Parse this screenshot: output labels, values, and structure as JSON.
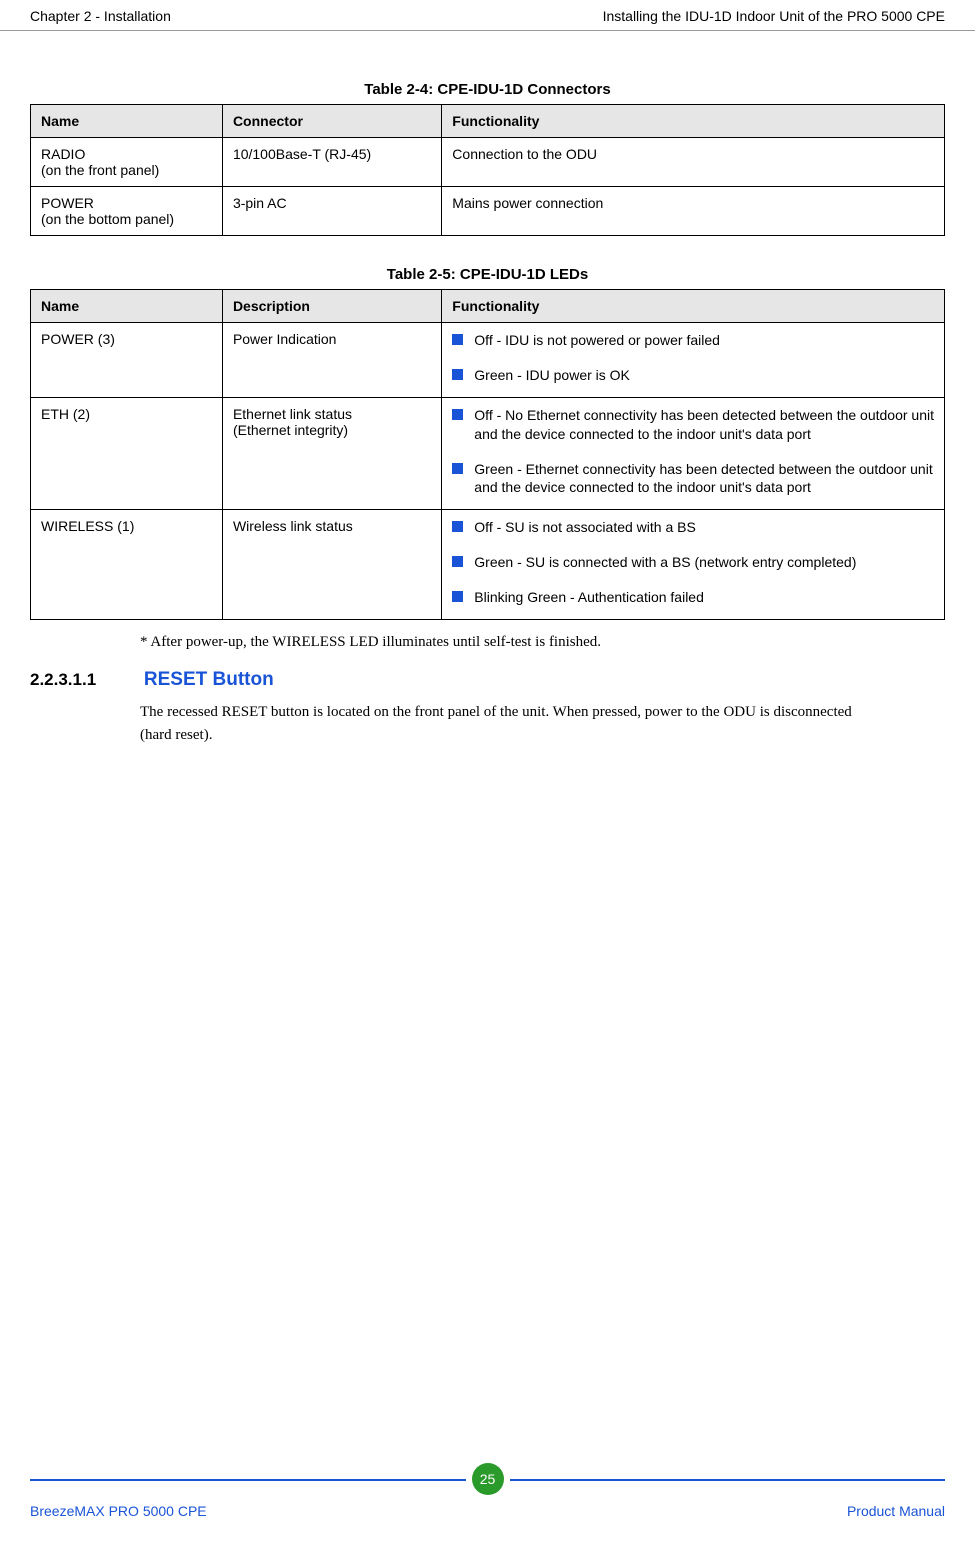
{
  "header": {
    "left": "Chapter 2 - Installation",
    "right": "Installing the IDU-1D Indoor Unit of the PRO 5000 CPE"
  },
  "table1": {
    "caption": "Table 2-4: CPE-IDU-1D Connectors",
    "columns": [
      "Name",
      "Connector",
      "Functionality"
    ],
    "rows": [
      {
        "name_l1": "RADIO",
        "name_l2": "(on the front panel)",
        "connector": "10/100Base-T (RJ-45)",
        "func": "Connection to the ODU"
      },
      {
        "name_l1": "POWER",
        "name_l2": "(on the bottom panel)",
        "connector": "3-pin AC",
        "func": "Mains power connection"
      }
    ]
  },
  "table2": {
    "caption": "Table 2-5: CPE-IDU-1D LEDs",
    "columns": [
      "Name",
      "Description",
      "Functionality"
    ],
    "rows": [
      {
        "name": "POWER (3)",
        "desc": "Power Indication",
        "items": [
          "Off - IDU is not powered or power failed",
          "Green - IDU power is OK"
        ]
      },
      {
        "name": "ETH (2)",
        "desc_l1": "Ethernet link status",
        "desc_l2": "(Ethernet integrity)",
        "items": [
          "Off - No Ethernet connectivity has been detected between the outdoor unit and the device connected to the indoor unit's data port",
          "Green - Ethernet connectivity has been detected between the outdoor unit and the device connected to the indoor unit's data port"
        ]
      },
      {
        "name": "WIRELESS (1)",
        "desc": "Wireless link status",
        "items": [
          "Off - SU is not associated with a BS",
          "Green - SU is connected with a BS (network entry completed)",
          "Blinking Green - Authentication failed"
        ]
      }
    ]
  },
  "note": "* After power-up, the WIRELESS LED illuminates until self-test is finished.",
  "section": {
    "number": "2.2.3.1.1",
    "title": "RESET Button",
    "body": "The recessed RESET button is located on the front panel of the unit. When pressed, power to the ODU is disconnected (hard reset)."
  },
  "footer": {
    "left": "BreezeMAX PRO 5000 CPE",
    "page": "25",
    "right": "Product Manual"
  },
  "colors": {
    "accent": "#1a54d6",
    "badge": "#2a9a2a",
    "header_bg": "#e6e6e6"
  }
}
